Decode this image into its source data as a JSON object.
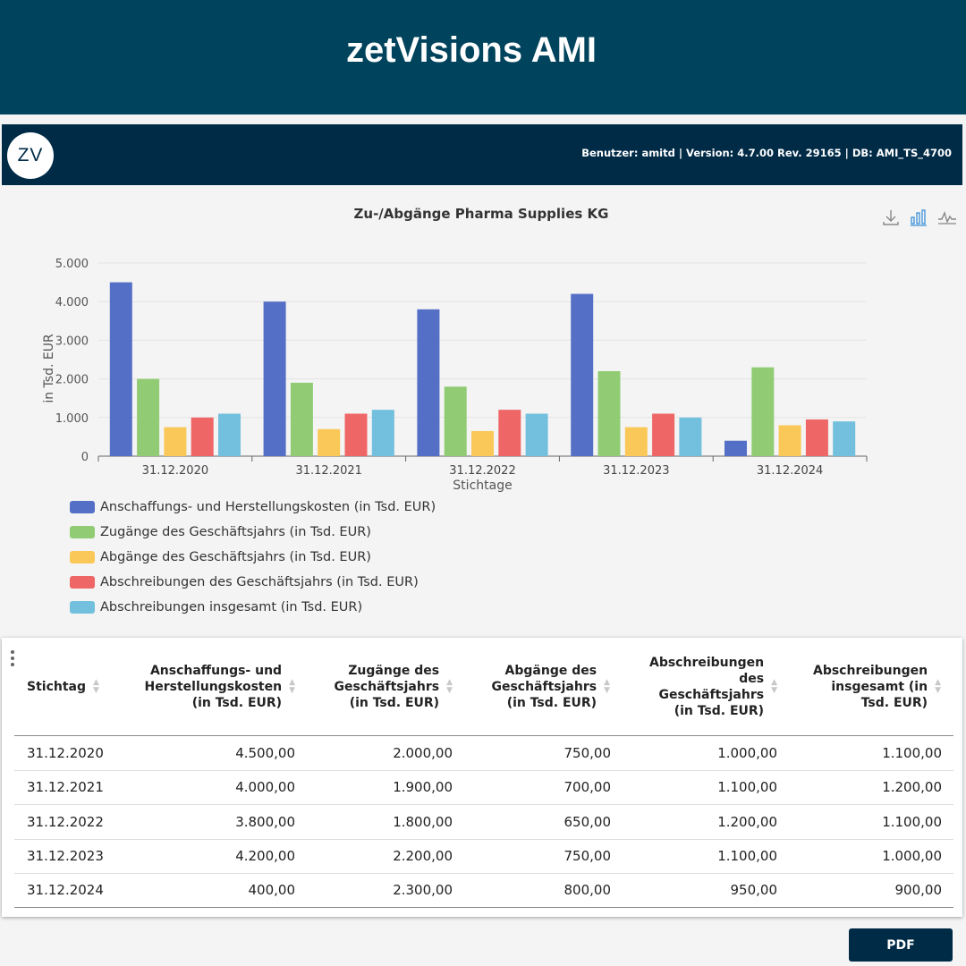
{
  "banner": {
    "title": "zetVisions AMI"
  },
  "appbar": {
    "logo_text": "ZV",
    "user_info": "Benutzer: amitd | Version: 4.7.00 Rev. 29165 | DB: AMI_TS_4700"
  },
  "toolbar": {
    "icons": [
      "download-icon",
      "bar-chart-icon",
      "line-chart-icon"
    ]
  },
  "chart_data": {
    "type": "bar",
    "title": "Zu-/Abgänge Pharma Supplies KG",
    "xlabel": "Stichtage",
    "ylabel": "in Tsd. EUR",
    "ylim": [
      0,
      5000
    ],
    "yticks": [
      "0",
      "1.000",
      "2.000",
      "3.000",
      "4.000",
      "5.000"
    ],
    "categories": [
      "31.12.2020",
      "31.12.2021",
      "31.12.2022",
      "31.12.2023",
      "31.12.2024"
    ],
    "grid": true,
    "legend_position": "bottom-left",
    "series": [
      {
        "name": "Anschaffungs- und Herstellungskosten (in Tsd. EUR)",
        "color": "#5470c6",
        "values": [
          4500,
          4000,
          3800,
          4200,
          400
        ]
      },
      {
        "name": "Zugänge des Geschäftsjahrs (in Tsd. EUR)",
        "color": "#91cc75",
        "values": [
          2000,
          1900,
          1800,
          2200,
          2300
        ]
      },
      {
        "name": "Abgänge des Geschäftsjahrs (in Tsd. EUR)",
        "color": "#fac858",
        "values": [
          750,
          700,
          650,
          750,
          800
        ]
      },
      {
        "name": "Abschreibungen des Geschäftsjahrs (in Tsd. EUR)",
        "color": "#ee6666",
        "values": [
          1000,
          1100,
          1200,
          1100,
          950
        ]
      },
      {
        "name": "Abschreibungen insgesamt (in Tsd. EUR)",
        "color": "#73c0de",
        "values": [
          1100,
          1200,
          1100,
          1000,
          900
        ]
      }
    ]
  },
  "table": {
    "headers": [
      {
        "lines": [
          "Stichtag"
        ]
      },
      {
        "lines": [
          "Anschaffungs- und",
          "Herstellungskosten",
          "(in Tsd. EUR)"
        ]
      },
      {
        "lines": [
          "Zugänge des",
          "Geschäftsjahrs",
          "(in Tsd. EUR)"
        ]
      },
      {
        "lines": [
          "Abgänge des",
          "Geschäftsjahrs",
          "(in Tsd. EUR)"
        ]
      },
      {
        "lines": [
          "Abschreibungen",
          "des",
          "Geschäftsjahrs",
          "(in Tsd. EUR)"
        ]
      },
      {
        "lines": [
          "Abschreibungen",
          "insgesamt (in",
          "Tsd. EUR)"
        ]
      }
    ],
    "rows": [
      [
        "31.12.2020",
        "4.500,00",
        "2.000,00",
        "750,00",
        "1.000,00",
        "1.100,00"
      ],
      [
        "31.12.2021",
        "4.000,00",
        "1.900,00",
        "700,00",
        "1.100,00",
        "1.200,00"
      ],
      [
        "31.12.2022",
        "3.800,00",
        "1.800,00",
        "650,00",
        "1.200,00",
        "1.100,00"
      ],
      [
        "31.12.2023",
        "4.200,00",
        "2.200,00",
        "750,00",
        "1.100,00",
        "1.000,00"
      ],
      [
        "31.12.2024",
        "400,00",
        "2.300,00",
        "800,00",
        "950,00",
        "900,00"
      ]
    ]
  },
  "footer": {
    "pdf_label": "PDF"
  }
}
